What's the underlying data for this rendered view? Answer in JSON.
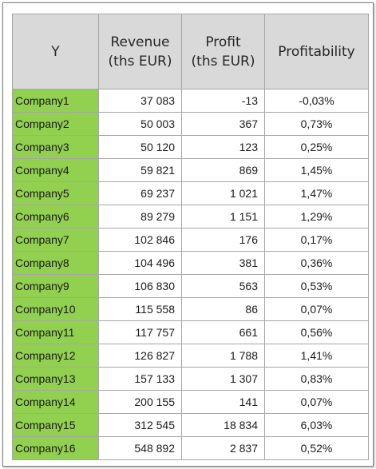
{
  "table": {
    "headers": [
      {
        "line1": "Y",
        "line2": ""
      },
      {
        "line1": "Revenue",
        "line2": "(ths EUR)"
      },
      {
        "line1": "Profit",
        "line2": "(ths EUR)"
      },
      {
        "line1": "Profitability",
        "line2": ""
      }
    ],
    "rows": [
      {
        "company": "Company1",
        "revenue": "37 083",
        "profit": "-13",
        "profitability": "-0,03%"
      },
      {
        "company": "Company2",
        "revenue": "50 003",
        "profit": "367",
        "profitability": "0,73%"
      },
      {
        "company": "Company3",
        "revenue": "50 120",
        "profit": "123",
        "profitability": "0,25%"
      },
      {
        "company": "Company4",
        "revenue": "59 821",
        "profit": "869",
        "profitability": "1,45%"
      },
      {
        "company": "Company5",
        "revenue": "69 237",
        "profit": "1 021",
        "profitability": "1,47%"
      },
      {
        "company": "Company6",
        "revenue": "89 279",
        "profit": "1 151",
        "profitability": "1,29%"
      },
      {
        "company": "Company7",
        "revenue": "102 846",
        "profit": "176",
        "profitability": "0,17%"
      },
      {
        "company": "Company8",
        "revenue": "104 496",
        "profit": "381",
        "profitability": "0,36%"
      },
      {
        "company": "Company9",
        "revenue": "106 830",
        "profit": "563",
        "profitability": "0,53%"
      },
      {
        "company": "Company10",
        "revenue": "115 558",
        "profit": "86",
        "profitability": "0,07%"
      },
      {
        "company": "Company11",
        "revenue": "117 757",
        "profit": "661",
        "profitability": "0,56%"
      },
      {
        "company": "Company12",
        "revenue": "126 827",
        "profit": "1 788",
        "profitability": "1,41%"
      },
      {
        "company": "Company13",
        "revenue": "157 133",
        "profit": "1 307",
        "profitability": "0,83%"
      },
      {
        "company": "Company14",
        "revenue": "200 155",
        "profit": "141",
        "profitability": "0,07%"
      },
      {
        "company": "Company15",
        "revenue": "312 545",
        "profit": "18 834",
        "profitability": "6,03%"
      },
      {
        "company": "Company16",
        "revenue": "548 892",
        "profit": "2 837",
        "profitability": "0,52%"
      }
    ]
  },
  "colors": {
    "header_background": "#d9d9d9",
    "company_cell_background": "#92d050",
    "grid_line": "#a6a6a6"
  }
}
